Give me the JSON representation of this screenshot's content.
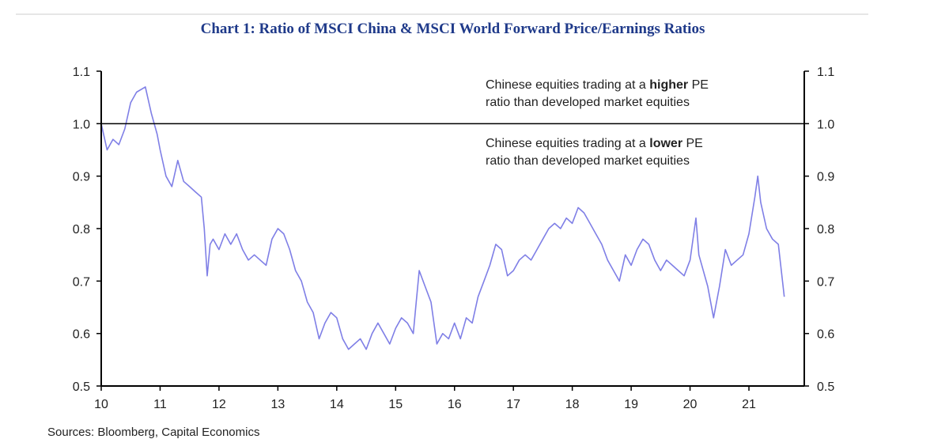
{
  "chart_data": {
    "type": "line",
    "title": "Chart 1: Ratio of MSCI China & MSCI World Forward Price/Earnings Ratios",
    "xlabel": "",
    "ylabel": "",
    "xlim": [
      10,
      21.94
    ],
    "ylim": [
      0.5,
      1.1
    ],
    "x_ticks": [
      "10",
      "11",
      "12",
      "13",
      "14",
      "15",
      "16",
      "17",
      "18",
      "19",
      "20",
      "21"
    ],
    "y_ticks": [
      "0.5",
      "0.6",
      "0.7",
      "0.8",
      "0.9",
      "1.0",
      "1.1"
    ],
    "reference_line": 1.0,
    "annotations": {
      "higher": {
        "pre": "Chinese equities trading at a ",
        "bold": "higher",
        "post": " PE",
        "line2": "ratio than developed market equities"
      },
      "lower": {
        "pre": "Chinese equities trading at a ",
        "bold": "lower",
        "post": " PE",
        "line2": "ratio than developed market equities"
      }
    },
    "series": [
      {
        "name": "MSCI China / MSCI World forward P/E",
        "color": "#7f7fe6",
        "x": [
          10.0,
          10.1,
          10.2,
          10.3,
          10.4,
          10.5,
          10.6,
          10.75,
          10.85,
          10.95,
          11.0,
          11.1,
          11.2,
          11.3,
          11.4,
          11.5,
          11.6,
          11.7,
          11.75,
          11.8,
          11.85,
          11.9,
          12.0,
          12.1,
          12.2,
          12.3,
          12.4,
          12.5,
          12.6,
          12.7,
          12.8,
          12.9,
          13.0,
          13.1,
          13.2,
          13.3,
          13.4,
          13.5,
          13.6,
          13.7,
          13.8,
          13.9,
          14.0,
          14.1,
          14.2,
          14.3,
          14.4,
          14.5,
          14.6,
          14.7,
          14.8,
          14.9,
          15.0,
          15.1,
          15.2,
          15.3,
          15.35,
          15.4,
          15.5,
          15.6,
          15.7,
          15.8,
          15.9,
          16.0,
          16.1,
          16.2,
          16.3,
          16.4,
          16.5,
          16.6,
          16.7,
          16.8,
          16.9,
          17.0,
          17.1,
          17.2,
          17.3,
          17.4,
          17.5,
          17.6,
          17.7,
          17.8,
          17.9,
          18.0,
          18.1,
          18.2,
          18.3,
          18.4,
          18.5,
          18.6,
          18.7,
          18.8,
          18.9,
          19.0,
          19.1,
          19.2,
          19.3,
          19.4,
          19.5,
          19.6,
          19.7,
          19.8,
          19.9,
          20.0,
          20.1,
          20.15,
          20.3,
          20.4,
          20.5,
          20.6,
          20.7,
          20.8,
          20.9,
          21.0,
          21.1,
          21.15,
          21.2,
          21.3,
          21.4,
          21.5,
          21.6
        ],
        "values": [
          1.0,
          0.95,
          0.97,
          0.96,
          0.99,
          1.04,
          1.06,
          1.07,
          1.02,
          0.98,
          0.95,
          0.9,
          0.88,
          0.93,
          0.89,
          0.88,
          0.87,
          0.86,
          0.8,
          0.71,
          0.77,
          0.78,
          0.76,
          0.79,
          0.77,
          0.79,
          0.76,
          0.74,
          0.75,
          0.74,
          0.73,
          0.78,
          0.8,
          0.79,
          0.76,
          0.72,
          0.7,
          0.66,
          0.64,
          0.59,
          0.62,
          0.64,
          0.63,
          0.59,
          0.57,
          0.58,
          0.59,
          0.57,
          0.6,
          0.62,
          0.6,
          0.58,
          0.61,
          0.63,
          0.62,
          0.6,
          0.66,
          0.72,
          0.69,
          0.66,
          0.58,
          0.6,
          0.59,
          0.62,
          0.59,
          0.63,
          0.62,
          0.67,
          0.7,
          0.73,
          0.77,
          0.76,
          0.71,
          0.72,
          0.74,
          0.75,
          0.74,
          0.76,
          0.78,
          0.8,
          0.81,
          0.8,
          0.82,
          0.81,
          0.84,
          0.83,
          0.81,
          0.79,
          0.77,
          0.74,
          0.72,
          0.7,
          0.75,
          0.73,
          0.76,
          0.78,
          0.77,
          0.74,
          0.72,
          0.74,
          0.73,
          0.72,
          0.71,
          0.74,
          0.82,
          0.75,
          0.69,
          0.63,
          0.69,
          0.76,
          0.73,
          0.74,
          0.75,
          0.79,
          0.86,
          0.9,
          0.85,
          0.8,
          0.78,
          0.77,
          0.67
        ]
      }
    ]
  },
  "footer": {
    "source": "Sources: Bloomberg, Capital Economics"
  }
}
